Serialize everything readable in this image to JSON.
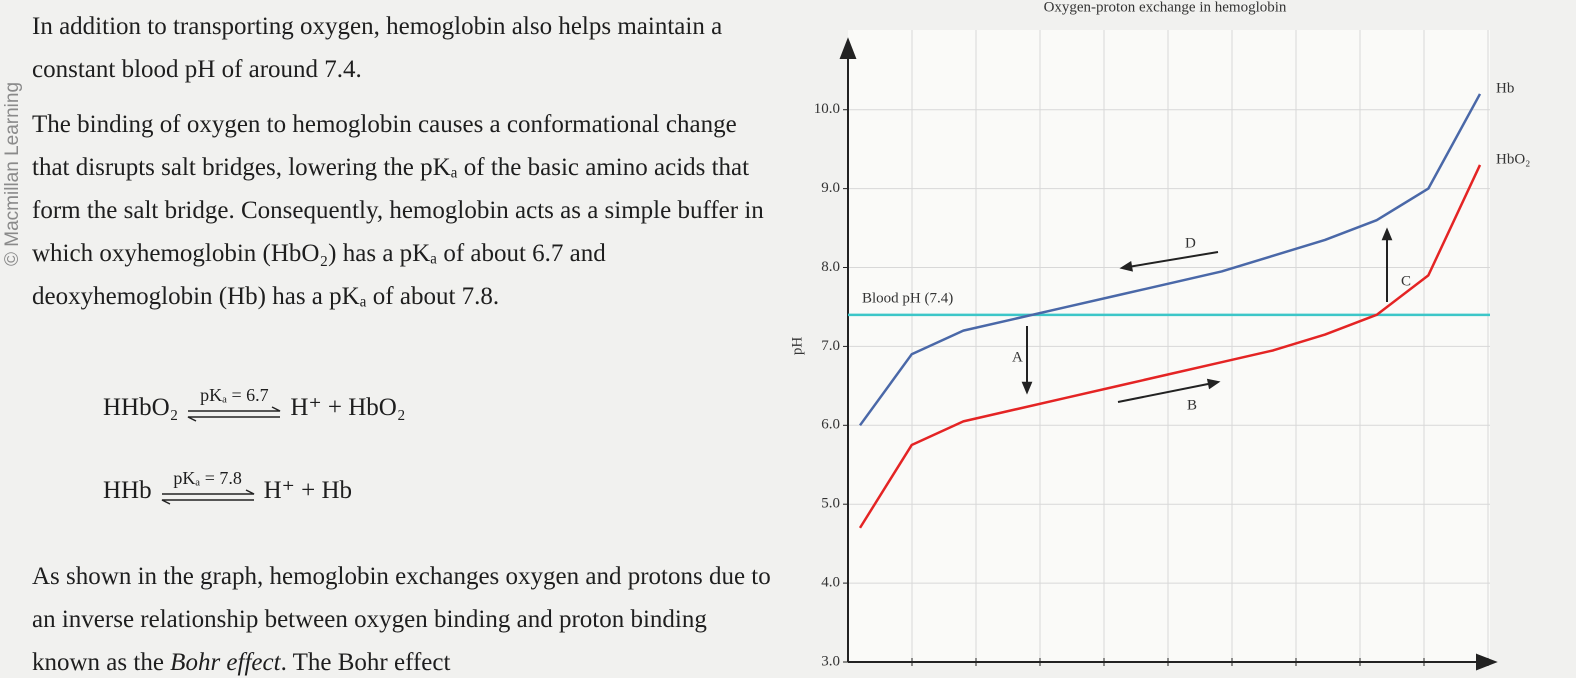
{
  "document": {
    "watermark": "© Macmillan Learning",
    "paragraphs": [
      "In addition to transporting oxygen, hemoglobin also helps maintain a constant blood pH of around 7.4.",
      "The binding of oxygen to hemoglobin causes a conformational change that disrupts salt bridges, lowering the pKₐ of the basic amino acids that form the salt bridge. Consequently, hemoglobin acts as a simple buffer in which oxyhemoglobin (HbO₂) has a pKₐ of about 6.7 and deoxyhemoglobin (Hb) has a pKₐ of about 7.8."
    ],
    "equations": [
      {
        "lhs": "HHbO₂",
        "condition": "pKₐ = 6.7",
        "rhs": "H⁺ + HbO₂"
      },
      {
        "lhs": "HHb",
        "condition": "pKₐ = 7.8",
        "rhs": "H⁺ + Hb"
      }
    ],
    "closing": [
      "As shown in the graph, hemoglobin exchanges oxygen and protons due to an inverse relationship between oxygen binding and proton binding known as the ",
      "Bohr effect",
      ". The Bohr effect"
    ]
  },
  "chart_data": {
    "type": "line",
    "title": "Oxygen-proton exchange in hemoglobin",
    "y_label": "pH",
    "categories": [
      null,
      null,
      null,
      null,
      null,
      null,
      null,
      null,
      null,
      null,
      null,
      null,
      null
    ],
    "series": [
      {
        "name": "Hb",
        "color": "#4a68a8",
        "values": [
          6.0,
          6.9,
          7.2,
          7.35,
          7.5,
          7.65,
          7.8,
          7.95,
          8.15,
          8.35,
          8.6,
          9.0,
          10.2
        ]
      },
      {
        "name": "HbO₂",
        "color": "#e42424",
        "values": [
          4.7,
          5.75,
          6.05,
          6.2,
          6.35,
          6.5,
          6.65,
          6.8,
          6.95,
          7.15,
          7.4,
          7.9,
          9.3
        ]
      }
    ],
    "reference_line": {
      "label": "Blood pH (7.4)",
      "value": 7.4,
      "color": "#3cc6c8"
    },
    "annotations": [
      "A",
      "B",
      "C",
      "D"
    ],
    "ylim": [
      3,
      10.8
    ],
    "yticks": [
      {
        "value": 3,
        "label": "3.0"
      },
      {
        "value": 4,
        "label": "4.0"
      },
      {
        "value": 5,
        "label": "5.0"
      },
      {
        "value": 6,
        "label": "6.0"
      },
      {
        "value": 7,
        "label": "7.0"
      },
      {
        "value": 8,
        "label": "8.0"
      },
      {
        "value": 9,
        "label": "9.0"
      },
      {
        "value": 10,
        "label": "10.0"
      }
    ],
    "grid": true
  }
}
